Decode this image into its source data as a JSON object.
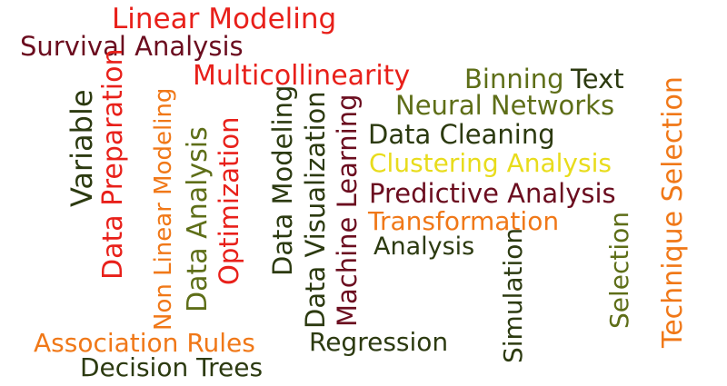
{
  "words": {
    "linear_modeling": "Linear Modeling",
    "survival_analysis": "Survival Analysis",
    "multicollinearity": "Multicollinearity",
    "binning": "Binning",
    "text": "Text",
    "neural_networks": "Neural Networks",
    "data_cleaning": "Data Cleaning",
    "clustering_analysis": "Clustering Analysis",
    "predictive_analysis": "Predictive Analysis",
    "transformation": "Transformation",
    "analysis": "Analysis",
    "regression": "Regression",
    "association_rules": "Association Rules",
    "decision_trees": "Decision Trees",
    "variable": "Variable",
    "data_preparation": "Data Preparation",
    "non_linear_modeling": "Non Linear Modeling",
    "data_analysis": "Data Analysis",
    "optimization": "Optimization",
    "data_modeling": "Data Modeling",
    "data_visualization": "Data Visualization",
    "machine_learning": "Machine Learning",
    "simulation": "Simulation",
    "selection": "Selection",
    "technique_selection": "Technique Selection"
  },
  "colors": {
    "red": "#e8201a",
    "maroon": "#6b0d1f",
    "dark_olive": "#2c3a10",
    "olive": "#5e6e18",
    "orange": "#f07818",
    "yellow": "#e8dc1c"
  }
}
